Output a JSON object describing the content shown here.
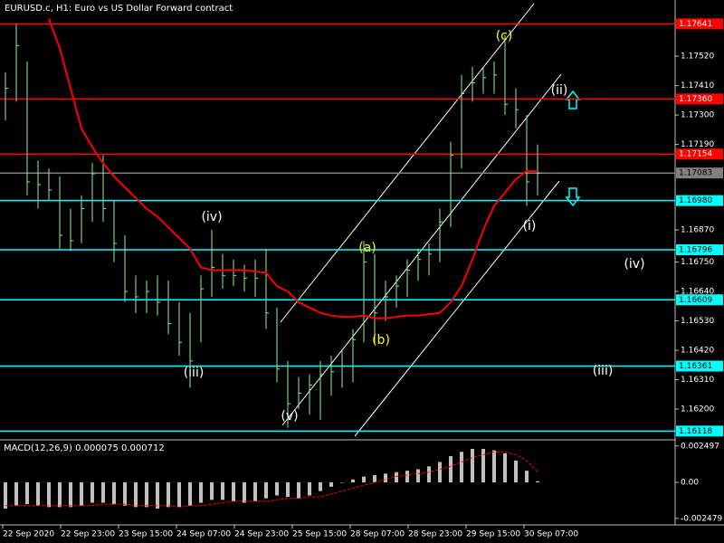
{
  "chart_data": [
    {
      "type": "ohlc",
      "title": "EURUSD.c, H1:  Euro vs US Dollar Forward contract",
      "color": "#90ee90",
      "high": [
        1.1746,
        1.1764,
        1.175,
        1.1713,
        1.171,
        1.1707,
        1.1695,
        1.17,
        1.1712,
        1.1715,
        1.1698,
        1.1685,
        1.167,
        1.1668,
        1.167,
        1.1668,
        1.166,
        1.1656,
        1.167,
        1.1687,
        1.1678,
        1.1676,
        1.1674,
        1.1676,
        1.168,
        1.1658,
        1.1638,
        1.1632,
        1.1633,
        1.1638,
        1.164,
        1.1642,
        1.165,
        1.1683,
        1.1678,
        1.1668,
        1.167,
        1.1676,
        1.168,
        1.1682,
        1.1695,
        1.172,
        1.1745,
        1.1748,
        1.1748,
        1.175,
        1.176,
        1.174,
        1.173,
        1.1719
      ],
      "low": [
        1.1728,
        1.1735,
        1.17,
        1.1695,
        1.1698,
        1.168,
        1.1679,
        1.1682,
        1.169,
        1.169,
        1.1675,
        1.166,
        1.1656,
        1.1656,
        1.1655,
        1.1648,
        1.164,
        1.1628,
        1.1645,
        1.1662,
        1.1665,
        1.1666,
        1.1664,
        1.1662,
        1.165,
        1.163,
        1.1613,
        1.162,
        1.1618,
        1.1616,
        1.1625,
        1.1628,
        1.163,
        1.1645,
        1.1644,
        1.1653,
        1.1658,
        1.1662,
        1.1668,
        1.167,
        1.1675,
        1.1688,
        1.171,
        1.1735,
        1.1738,
        1.1738,
        1.173,
        1.1725,
        1.1696,
        1.17
      ],
      "close": [
        1.174,
        1.1756,
        1.1705,
        1.1704,
        1.1702,
        1.1685,
        1.1683,
        1.1695,
        1.1708,
        1.1695,
        1.1682,
        1.1664,
        1.1662,
        1.1664,
        1.166,
        1.1652,
        1.1645,
        1.1638,
        1.1665,
        1.1673,
        1.167,
        1.167,
        1.1669,
        1.1669,
        1.1656,
        1.1635,
        1.1622,
        1.1626,
        1.1629,
        1.1633,
        1.1634,
        1.1636,
        1.1646,
        1.1675,
        1.1656,
        1.1662,
        1.1666,
        1.1672,
        1.1676,
        1.1678,
        1.169,
        1.1715,
        1.1738,
        1.1742,
        1.1744,
        1.1745,
        1.1734,
        1.1732,
        1.1705,
        1.17083
      ],
      "ma": {
        "color": "#ff0000",
        "values": [
          null,
          null,
          null,
          null,
          1.1766,
          1.1755,
          1.174,
          1.1725,
          1.1718,
          1.1712,
          1.1707,
          1.1703,
          1.1699,
          1.1695,
          1.1692,
          1.1688,
          1.1684,
          1.168,
          1.1673,
          1.1672,
          1.1672,
          1.1672,
          1.1672,
          1.16715,
          1.1671,
          1.1666,
          1.1664,
          1.166,
          1.1658,
          1.1656,
          1.1655,
          1.16545,
          1.16545,
          1.1655,
          1.1654,
          1.1654,
          1.16545,
          1.1655,
          1.1655,
          1.16555,
          1.1656,
          1.166,
          1.1666,
          1.1676,
          1.1687,
          1.1696,
          1.1701,
          1.1706,
          1.1709,
          1.1709
        ]
      },
      "ylim": [
        1.16092,
        1.17676
      ],
      "yticks": [
        {
          "value": 1.1752,
          "label": "1.17520"
        },
        {
          "value": 1.1741,
          "label": "1.17410"
        },
        {
          "value": 1.173,
          "label": "1.17300"
        },
        {
          "value": 1.1719,
          "label": "1.17190"
        },
        {
          "value": 1.1687,
          "label": "1.16870"
        },
        {
          "value": 1.1675,
          "label": "1.16750"
        },
        {
          "value": 1.1664,
          "label": "1.16640"
        },
        {
          "value": 1.1653,
          "label": "1.16530"
        },
        {
          "value": 1.1642,
          "label": "1.16420"
        },
        {
          "value": 1.1631,
          "label": "1.16310"
        },
        {
          "value": 1.162,
          "label": "1.16200"
        }
      ],
      "grid": false,
      "levels": [
        {
          "value": 1.17641,
          "label": "1.17641",
          "color": "#ff0000"
        },
        {
          "value": 1.1736,
          "label": "1.17360",
          "color": "#ff0000"
        },
        {
          "value": 1.17154,
          "label": "1.17154",
          "color": "#ff0000"
        },
        {
          "value": 1.17083,
          "label": "1.17083",
          "color": "#808080"
        },
        {
          "value": 1.1698,
          "label": "1.16980",
          "color": "#00ffff"
        },
        {
          "value": 1.16796,
          "label": "1.16796",
          "color": "#00ffff"
        },
        {
          "value": 1.16609,
          "label": "1.16609",
          "color": "#00ffff"
        },
        {
          "value": 1.16361,
          "label": "1.16361",
          "color": "#00ffff"
        },
        {
          "value": 1.16118,
          "label": "1.16118",
          "color": "#00ffff"
        }
      ],
      "annotations": [
        {
          "text": "(c)",
          "color": "#ffff00"
        },
        {
          "text": "(ii)",
          "color": "#ffffff"
        },
        {
          "text": "(i)",
          "color": "#ffffff"
        },
        {
          "text": "(iv)",
          "color": "#ffffff"
        },
        {
          "text": "(a)",
          "color": "#ffff00"
        },
        {
          "text": "(b)",
          "color": "#ffff00"
        },
        {
          "text": "(iii)",
          "color": "#ffffff"
        },
        {
          "text": "(iv)",
          "color": "#ffffff"
        },
        {
          "text": "(iii)",
          "color": "#ffffff"
        },
        {
          "text": "(v)",
          "color": "#ffffff"
        }
      ],
      "time_axis": [
        "22 Sep 2020",
        "22 Sep 23:00",
        "23 Sep 15:00",
        "24 Sep 07:00",
        "24 Sep 23:00",
        "25 Sep 15:00",
        "28 Sep 07:00",
        "28 Sep 23:00",
        "29 Sep 15:00",
        "30 Sep 07:00"
      ]
    },
    {
      "type": "macd",
      "title": "MACD(12,26,9) 0.000075 0.000712",
      "color": "#c0c0c0",
      "values": [
        -0.0018,
        -0.0016,
        -0.0015,
        -0.0016,
        -0.0017,
        -0.0017,
        -0.0017,
        -0.0016,
        -0.0014,
        -0.0014,
        -0.0015,
        -0.0016,
        -0.0017,
        -0.0017,
        -0.0018,
        -0.0017,
        -0.0017,
        -0.0016,
        -0.0014,
        -0.0012,
        -0.0012,
        -0.0013,
        -0.0014,
        -0.0013,
        -0.0011,
        -0.0009,
        -0.001,
        -0.0011,
        -0.0009,
        -0.0006,
        -0.0003,
        0,
        0.0002,
        0.0004,
        0.0005,
        0.0006,
        0.0007,
        0.0008,
        0.0009,
        0.0011,
        0.0014,
        0.0018,
        0.0021,
        0.0023,
        0.0023,
        0.0022,
        0.002,
        0.0015,
        0.0008,
        7.5e-05
      ],
      "signal": {
        "color": "#ff0000",
        "values": [
          -0.0016,
          -0.0016,
          -0.0016,
          -0.0016,
          -0.0016,
          -0.0016,
          -0.0016,
          -0.0016,
          -0.0016,
          -0.0015,
          -0.0015,
          -0.0015,
          -0.0016,
          -0.0016,
          -0.0016,
          -0.0016,
          -0.0017,
          -0.0016,
          -0.0016,
          -0.0015,
          -0.0014,
          -0.0013,
          -0.0013,
          -0.0013,
          -0.0013,
          -0.0012,
          -0.0011,
          -0.0011,
          -0.001,
          -0.001,
          -0.0008,
          -0.0006,
          -0.0004,
          -0.0002,
          0,
          0.0002,
          0.0004,
          0.0005,
          0.0006,
          0.0007,
          0.0009,
          0.0011,
          0.0014,
          0.0017,
          0.0019,
          0.0021,
          0.0021,
          0.0019,
          0.0015,
          0.000712
        ]
      },
      "ylim": [
        -0.00286,
        0.00286
      ],
      "yticks": [
        0.002497,
        {
          "value": 0,
          "label": "0.00"
        },
        -0.002479
      ]
    }
  ]
}
